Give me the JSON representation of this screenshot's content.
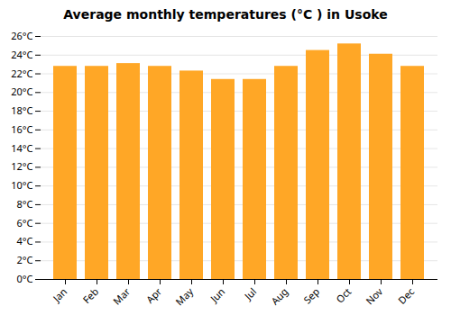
{
  "chart_data": {
    "type": "bar",
    "title": "Average monthly temperatures (°C ) in Usoke",
    "categories": [
      "Jan",
      "Feb",
      "Mar",
      "Apr",
      "May",
      "Jun",
      "Jul",
      "Aug",
      "Sep",
      "Oct",
      "Nov",
      "Dec"
    ],
    "values": [
      22.8,
      22.8,
      23.1,
      22.8,
      22.3,
      21.4,
      21.4,
      22.8,
      24.5,
      25.2,
      24.1,
      22.8
    ],
    "color": "#FFA726",
    "ylim": [
      0,
      26
    ],
    "yticks": [
      {
        "value": 0,
        "label": "0°C"
      },
      {
        "value": 2,
        "label": "2°C"
      },
      {
        "value": 4,
        "label": "4°C"
      },
      {
        "value": 6,
        "label": "6°C"
      },
      {
        "value": 8,
        "label": "8°C"
      },
      {
        "value": 10,
        "label": "10°C"
      },
      {
        "value": 12,
        "label": "12°C"
      },
      {
        "value": 14,
        "label": "14°C"
      },
      {
        "value": 16,
        "label": "16°C"
      },
      {
        "value": 18,
        "label": "18°C"
      },
      {
        "value": 20,
        "label": "20°C"
      },
      {
        "value": 22,
        "label": "22°C"
      },
      {
        "value": 24,
        "label": "24°C"
      },
      {
        "value": 26,
        "label": "26°C"
      }
    ],
    "grid": true
  }
}
